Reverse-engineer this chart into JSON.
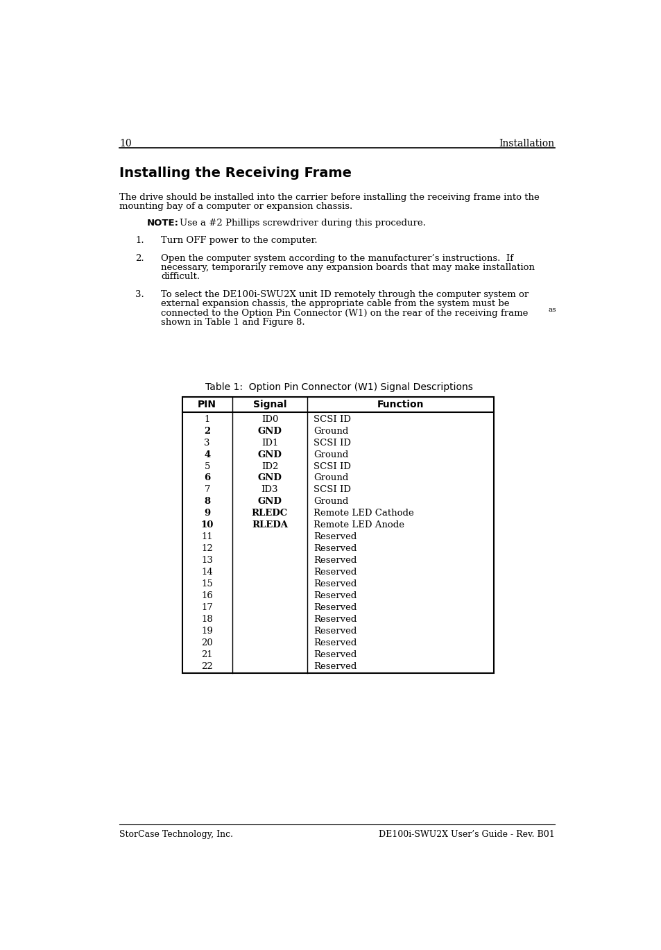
{
  "page_number": "10",
  "page_header_right": "Installation",
  "title": "Installing the Receiving Frame",
  "intro_line1": "The drive should be installed into the carrier before installing the receiving frame into the",
  "intro_line2": "mounting bay of a computer or expansion chassis.",
  "note_label": "NOTE:",
  "note_text": "Use a #2 Phillips screwdriver during this procedure.",
  "step1": "Turn OFF power to the computer.",
  "step2_line1": "Open the computer system according to the manufacturer’s instructions.  If",
  "step2_line2": "necessary, temporarily remove any expansion boards that may make installation",
  "step2_line3": "difficult.",
  "step3_line1": "To select the DE100i-SWU2X unit ID remotely through the computer system or",
  "step3_line2": "external expansion chassis, the appropriate cable from the system must be",
  "step3_line3": "connected to the Option Pin Connector (W1) on the rear of the receiving frame",
  "step3_as": "as",
  "step3_line4": "shown in Table 1 and Figure 8.",
  "table_title": "Table 1:  Option Pin Connector (W1) Signal Descriptions",
  "table_headers": [
    "PIN",
    "Signal",
    "Function"
  ],
  "table_rows": [
    [
      "1",
      "ID0",
      "SCSI ID"
    ],
    [
      "2",
      "GND",
      "Ground"
    ],
    [
      "3",
      "ID1",
      "SCSI ID"
    ],
    [
      "4",
      "GND",
      "Ground"
    ],
    [
      "5",
      "ID2",
      "SCSI ID"
    ],
    [
      "6",
      "GND",
      "Ground"
    ],
    [
      "7",
      "ID3",
      "SCSI ID"
    ],
    [
      "8",
      "GND",
      "Ground"
    ],
    [
      "9",
      "RLEDC",
      "Remote LED Cathode"
    ],
    [
      "10",
      "RLEDA",
      "Remote LED Anode"
    ],
    [
      "11",
      "",
      "Reserved"
    ],
    [
      "12",
      "",
      "Reserved"
    ],
    [
      "13",
      "",
      "Reserved"
    ],
    [
      "14",
      "",
      "Reserved"
    ],
    [
      "15",
      "",
      "Reserved"
    ],
    [
      "16",
      "",
      "Reserved"
    ],
    [
      "17",
      "",
      "Reserved"
    ],
    [
      "18",
      "",
      "Reserved"
    ],
    [
      "19",
      "",
      "Reserved"
    ],
    [
      "20",
      "",
      "Reserved"
    ],
    [
      "21",
      "",
      "Reserved"
    ],
    [
      "22",
      "",
      "Reserved"
    ]
  ],
  "footer_left": "StorCase Technology, Inc.",
  "footer_right": "DE100i-SWU2X User’s Guide - Rev. B01",
  "background_color": "#ffffff",
  "text_color": "#000000"
}
